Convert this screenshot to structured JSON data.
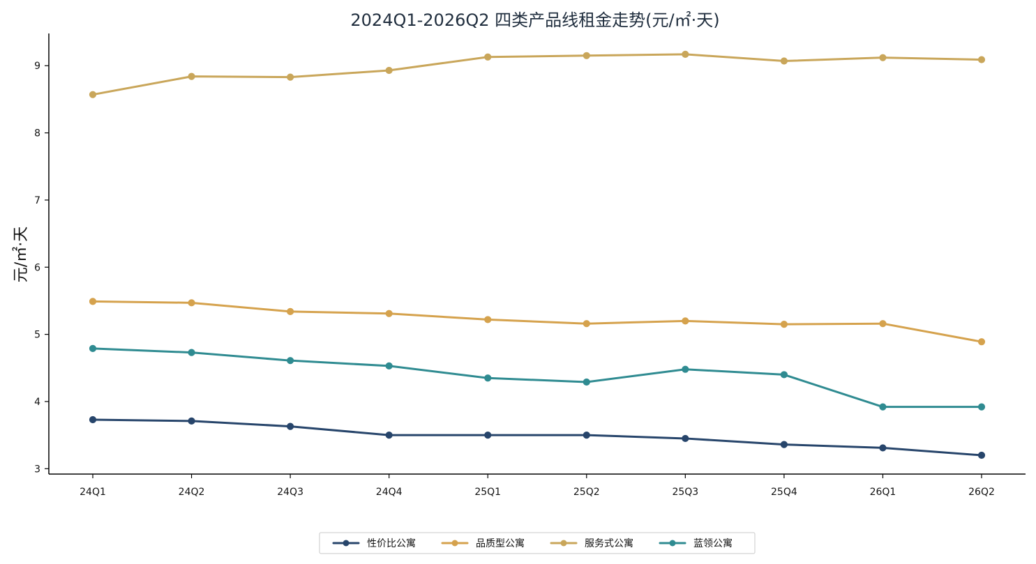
{
  "chart_data": {
    "type": "line",
    "title": "2024Q1-2026Q2 四类产品线租金走势(元/㎡·天)",
    "xlabel": "",
    "ylabel": "元/㎡·天",
    "categories": [
      "24Q1",
      "24Q2",
      "24Q3",
      "24Q4",
      "25Q1",
      "25Q2",
      "25Q3",
      "25Q4",
      "26Q1",
      "26Q2"
    ],
    "ylim": [
      2.92,
      9.48
    ],
    "yticks": [
      3,
      4,
      5,
      6,
      7,
      8,
      9
    ],
    "grid": false,
    "legend_position": "bottom-center",
    "series": [
      {
        "name": "性价比公寓",
        "color": "#27456b",
        "values": [
          3.73,
          3.71,
          3.63,
          3.5,
          3.5,
          3.5,
          3.45,
          3.36,
          3.31,
          3.2
        ]
      },
      {
        "name": "品质型公寓",
        "color": "#d5a24d",
        "values": [
          5.49,
          5.47,
          5.34,
          5.31,
          5.22,
          5.16,
          5.2,
          5.15,
          5.16,
          4.89
        ]
      },
      {
        "name": "服务式公寓",
        "color": "#c9a65a",
        "values": [
          8.57,
          8.84,
          8.83,
          8.93,
          9.13,
          9.15,
          9.17,
          9.07,
          9.12,
          9.09
        ]
      },
      {
        "name": "蓝领公寓",
        "color": "#2f8b91",
        "values": [
          4.79,
          4.73,
          4.61,
          4.53,
          4.35,
          4.29,
          4.48,
          4.4,
          3.92,
          3.92
        ]
      }
    ]
  }
}
